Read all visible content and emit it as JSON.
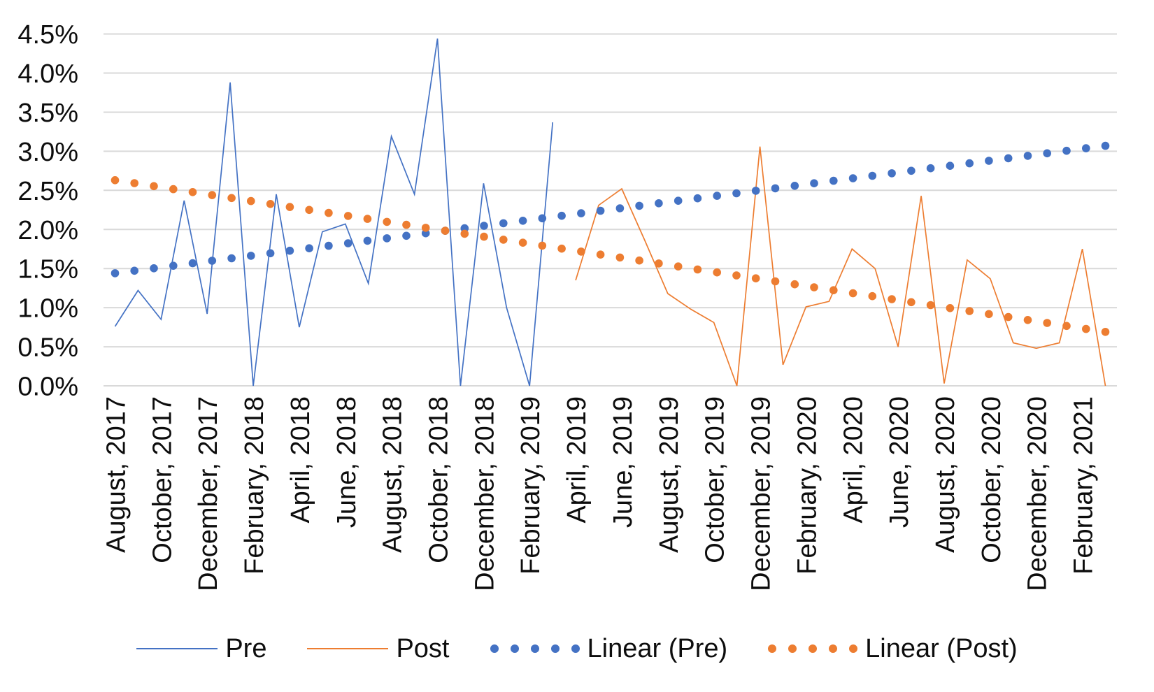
{
  "chart_data": {
    "type": "line",
    "title": "",
    "xlabel": "",
    "ylabel": "",
    "background_color": "#FFFFFF",
    "gridline_color": "#D9D9D9",
    "text_color": "#0d0d0d",
    "grid": true,
    "y_axis": {
      "min": 0,
      "max": 4.5,
      "step": 0.5,
      "format": "percent",
      "tick_labels": [
        "4.5%",
        "4.0%",
        "3.5%",
        "3.0%",
        "2.5%",
        "2.0%",
        "1.5%",
        "1.0%",
        "0.5%",
        "0.0%"
      ]
    },
    "x_axis": {
      "tick_labels": [
        "August, 2017",
        "October, 2017",
        "December, 2017",
        "February, 2018",
        "April, 2018",
        "June, 2018",
        "August, 2018",
        "October, 2018",
        "December, 2018",
        "February, 2019",
        "April, 2019",
        "June, 2019",
        "August, 2019",
        "October, 2019",
        "December, 2019",
        "February, 2020",
        "April, 2020",
        "June, 2020",
        "August, 2020",
        "October, 2020",
        "December, 2020",
        "February, 2021"
      ],
      "label_rotation_deg": -90,
      "labels_every_n_months": 2
    },
    "categories": [
      "August, 2017",
      "September, 2017",
      "October, 2017",
      "November, 2017",
      "December, 2017",
      "January, 2018",
      "February, 2018",
      "March, 2018",
      "April, 2018",
      "May, 2018",
      "June, 2018",
      "July, 2018",
      "August, 2018",
      "September, 2018",
      "October, 2018",
      "November, 2018",
      "December, 2018",
      "January, 2019",
      "February, 2019",
      "March, 2019",
      "April, 2019",
      "May, 2019",
      "June, 2019",
      "July, 2019",
      "August, 2019",
      "September, 2019",
      "October, 2019",
      "November, 2019",
      "December, 2019",
      "January, 2020",
      "February, 2020",
      "March, 2020",
      "April, 2020",
      "May, 2020",
      "June, 2020",
      "July, 2020",
      "August, 2020",
      "September, 2020",
      "October, 2020",
      "November, 2020",
      "December, 2020",
      "January, 2021",
      "February, 2021",
      "March, 2021"
    ],
    "series": [
      {
        "name": "Pre",
        "color": "#4472C4",
        "style": "thin-line",
        "values_percent": [
          0.76,
          1.22,
          0.85,
          2.37,
          0.92,
          3.88,
          0.0,
          2.45,
          0.75,
          1.97,
          2.07,
          1.31,
          3.19,
          2.45,
          4.44,
          0.0,
          2.59,
          1.0,
          0.0,
          3.37,
          null,
          null,
          null,
          null,
          null,
          null,
          null,
          null,
          null,
          null,
          null,
          null,
          null,
          null,
          null,
          null,
          null,
          null,
          null,
          null,
          null,
          null,
          null,
          null
        ]
      },
      {
        "name": "Post",
        "color": "#ED7D31",
        "style": "thin-line",
        "values_percent": [
          null,
          null,
          null,
          null,
          null,
          null,
          null,
          null,
          null,
          null,
          null,
          null,
          null,
          null,
          null,
          null,
          null,
          null,
          null,
          null,
          1.35,
          2.31,
          2.52,
          1.86,
          1.18,
          0.98,
          0.81,
          0.0,
          3.06,
          0.27,
          1.01,
          1.08,
          1.75,
          1.5,
          0.5,
          2.43,
          0.03,
          1.61,
          1.37,
          0.55,
          0.48,
          0.55,
          1.75,
          0.0
        ]
      }
    ],
    "trendlines": [
      {
        "name": "Linear (Pre)",
        "color": "#4472C4",
        "style": "round-dot",
        "start_percent": 1.44,
        "end_percent": 3.07
      },
      {
        "name": "Linear (Post)",
        "color": "#ED7D31",
        "style": "round-dot",
        "start_percent": 2.63,
        "end_percent": 0.69
      }
    ],
    "legend": {
      "position": "bottom",
      "entries": [
        {
          "label": "Pre",
          "marker": "line",
          "color": "#4472C4"
        },
        {
          "label": "Post",
          "marker": "line",
          "color": "#ED7D31"
        },
        {
          "label": "Linear (Pre)",
          "marker": "dots",
          "color": "#4472C4"
        },
        {
          "label": "Linear (Post)",
          "marker": "dots",
          "color": "#ED7D31"
        }
      ]
    }
  }
}
